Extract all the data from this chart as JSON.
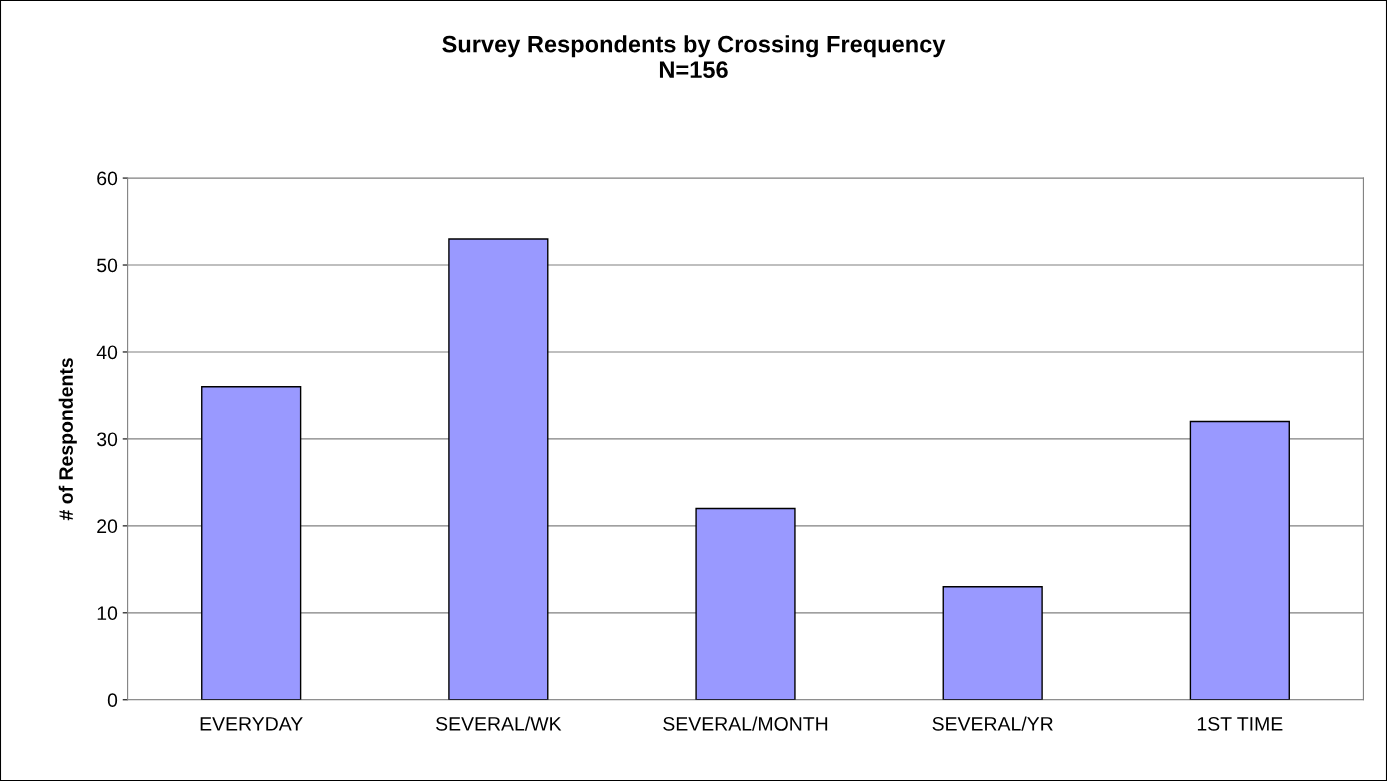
{
  "chart_data": {
    "type": "bar",
    "title": "Survey Respondents by Crossing Frequency\nN=156",
    "ylabel": "# of Respondents",
    "categories": [
      "EVERYDAY",
      "SEVERAL/WK",
      "SEVERAL/MONTH",
      "SEVERAL/YR",
      "1ST TIME"
    ],
    "values": [
      36,
      53,
      22,
      13,
      32
    ],
    "color": "#9999ff",
    "ylim": [
      0,
      60
    ],
    "yticks": [
      0,
      10,
      20,
      30,
      40,
      50,
      60
    ],
    "grid": "y",
    "legend": false
  }
}
